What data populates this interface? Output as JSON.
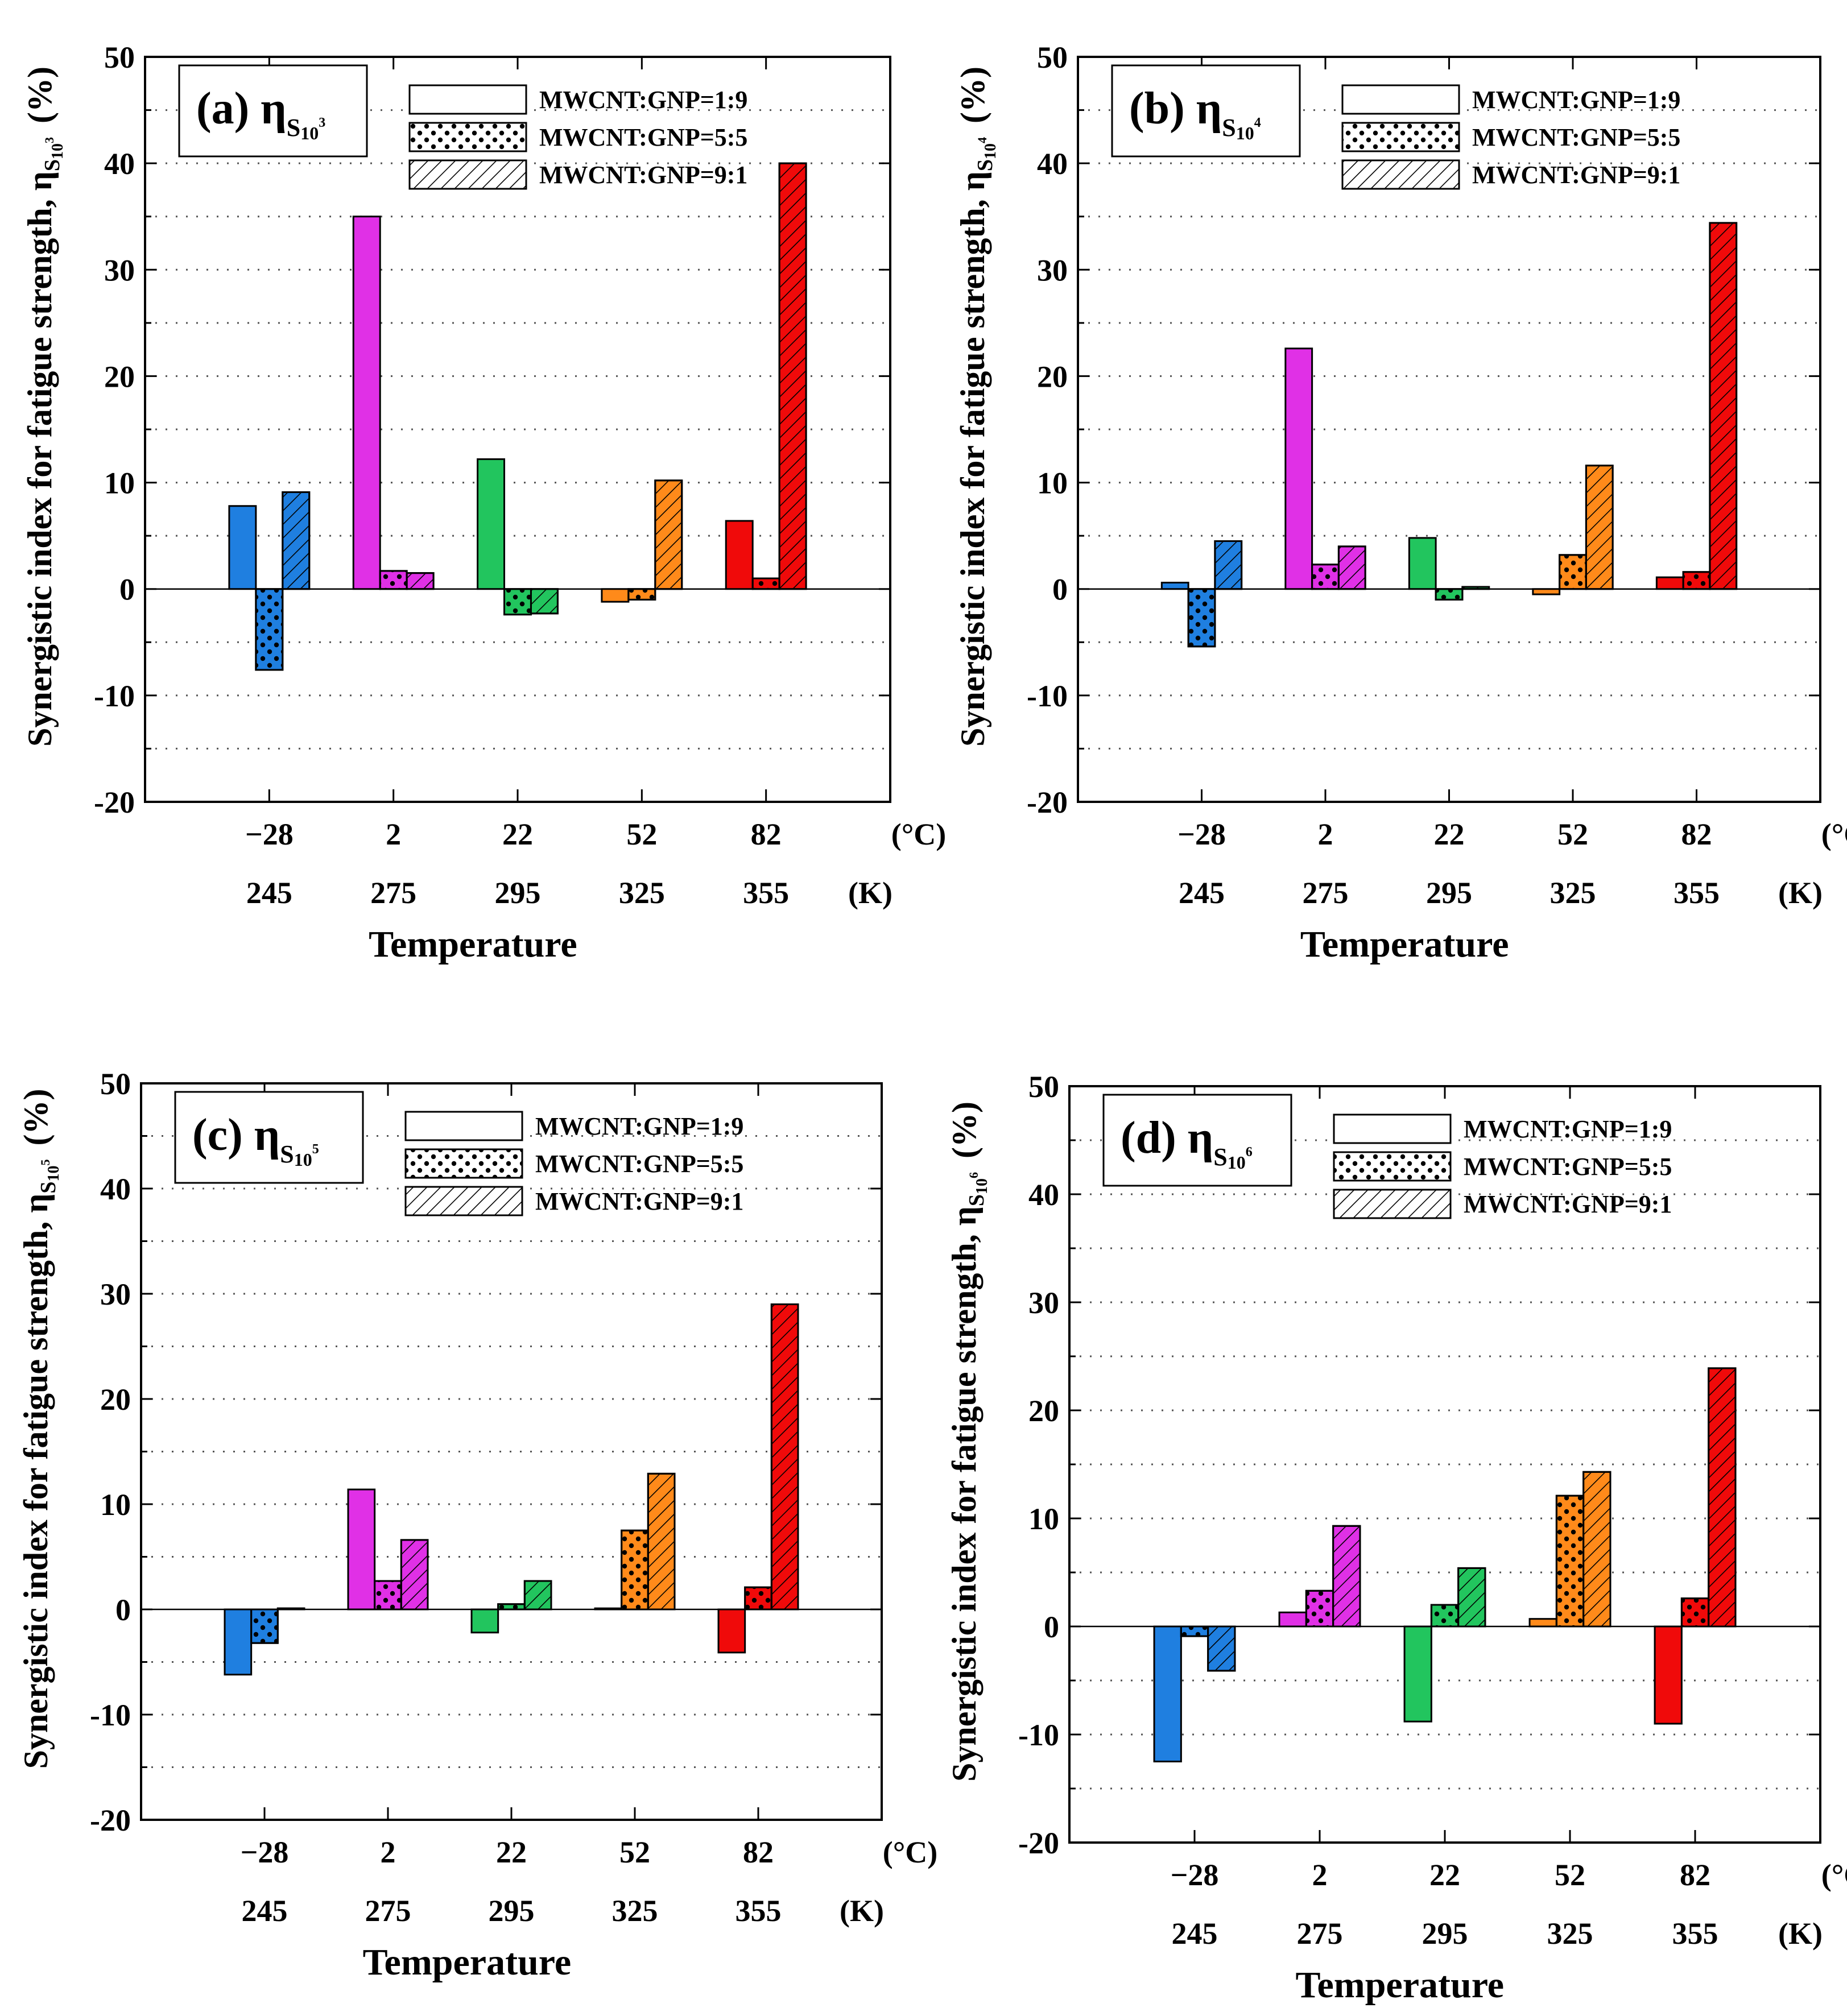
{
  "figure": {
    "ylabel": "Synergistic index for fatigue strength, η",
    "ylabel_unit": "(%)",
    "xlabel": "Temperature",
    "unit_c": "(°C)",
    "unit_k": "(K)"
  },
  "colors": {
    "-28": "#1f7fe0",
    "2": "#e030e6",
    "22": "#22c55e",
    "52": "#ff8a1a",
    "82": "#f00a0a"
  },
  "chart_data": [
    {
      "type": "bar",
      "title": "(a) η",
      "subscript": "S",
      "sub_base": "10",
      "sub_exp": "3",
      "categories_c": [
        "−28",
        "2",
        "22",
        "52",
        "82"
      ],
      "categories_k": [
        "245",
        "275",
        "295",
        "325",
        "355"
      ],
      "xlabel": "Temperature",
      "ylabel": "Synergistic index for fatigue strength, η (%)",
      "ylim": [
        -20,
        50
      ],
      "yticks": [
        "-20",
        "-10",
        "0",
        "10",
        "20",
        "30",
        "40",
        "50"
      ],
      "series": [
        {
          "name": "MWCNT:GNP=1:9",
          "pattern": "solid",
          "values": [
            7.8,
            35.0,
            12.2,
            -1.2,
            6.4
          ]
        },
        {
          "name": "MWCNT:GNP=5:5",
          "pattern": "dots",
          "values": [
            -7.6,
            1.7,
            -2.4,
            -1.0,
            1.0
          ]
        },
        {
          "name": "MWCNT:GNP=9:1",
          "pattern": "hatch",
          "values": [
            9.1,
            1.5,
            -2.3,
            10.2,
            40.0
          ]
        }
      ]
    },
    {
      "type": "bar",
      "title": "(b) η",
      "subscript": "S",
      "sub_base": "10",
      "sub_exp": "4",
      "categories_c": [
        "−28",
        "2",
        "22",
        "52",
        "82"
      ],
      "categories_k": [
        "245",
        "275",
        "295",
        "325",
        "355"
      ],
      "xlabel": "Temperature",
      "ylabel": "Synergistic index for fatigue strength, η (%)",
      "ylim": [
        -20,
        50
      ],
      "yticks": [
        "-20",
        "-10",
        "0",
        "10",
        "20",
        "30",
        "40",
        "50"
      ],
      "series": [
        {
          "name": "MWCNT:GNP=1:9",
          "pattern": "solid",
          "values": [
            0.6,
            22.6,
            4.8,
            -0.5,
            1.1
          ]
        },
        {
          "name": "MWCNT:GNP=5:5",
          "pattern": "dots",
          "values": [
            -5.4,
            2.3,
            -1.0,
            3.2,
            1.6
          ]
        },
        {
          "name": "MWCNT:GNP=9:1",
          "pattern": "hatch",
          "values": [
            4.5,
            4.0,
            0.2,
            11.6,
            34.4
          ]
        }
      ]
    },
    {
      "type": "bar",
      "title": "(c) η",
      "subscript": "S",
      "sub_base": "10",
      "sub_exp": "5",
      "categories_c": [
        "−28",
        "2",
        "22",
        "52",
        "82"
      ],
      "categories_k": [
        "245",
        "275",
        "295",
        "325",
        "355"
      ],
      "xlabel": "Temperature",
      "ylabel": "Synergistic index for fatigue strength, η (%)",
      "ylim": [
        -20,
        50
      ],
      "yticks": [
        "-20",
        "-10",
        "0",
        "10",
        "20",
        "30",
        "40",
        "50"
      ],
      "series": [
        {
          "name": "MWCNT:GNP=1:9",
          "pattern": "solid",
          "values": [
            -6.2,
            11.4,
            -2.2,
            0.1,
            -4.1
          ]
        },
        {
          "name": "MWCNT:GNP=5:5",
          "pattern": "dots",
          "values": [
            -3.2,
            2.7,
            0.5,
            7.5,
            2.1
          ]
        },
        {
          "name": "MWCNT:GNP=9:1",
          "pattern": "hatch",
          "values": [
            0.1,
            6.6,
            2.7,
            12.9,
            29.0
          ]
        }
      ]
    },
    {
      "type": "bar",
      "title": "(d) η",
      "subscript": "S",
      "sub_base": "10",
      "sub_exp": "6",
      "categories_c": [
        "−28",
        "2",
        "22",
        "52",
        "82"
      ],
      "categories_k": [
        "245",
        "275",
        "295",
        "325",
        "355"
      ],
      "xlabel": "Temperature",
      "ylabel": "Synergistic index for fatigue strength, η (%)",
      "ylim": [
        -20,
        50
      ],
      "yticks": [
        "-20",
        "-10",
        "0",
        "10",
        "20",
        "30",
        "40",
        "50"
      ],
      "series": [
        {
          "name": "MWCNT:GNP=1:9",
          "pattern": "solid",
          "values": [
            -12.5,
            1.3,
            -8.8,
            0.7,
            -9.0
          ]
        },
        {
          "name": "MWCNT:GNP=5:5",
          "pattern": "dots",
          "values": [
            -0.9,
            3.3,
            2.0,
            12.1,
            2.6
          ]
        },
        {
          "name": "MWCNT:GNP=9:1",
          "pattern": "hatch",
          "values": [
            -4.1,
            9.3,
            5.4,
            14.3,
            23.9
          ]
        }
      ]
    }
  ]
}
